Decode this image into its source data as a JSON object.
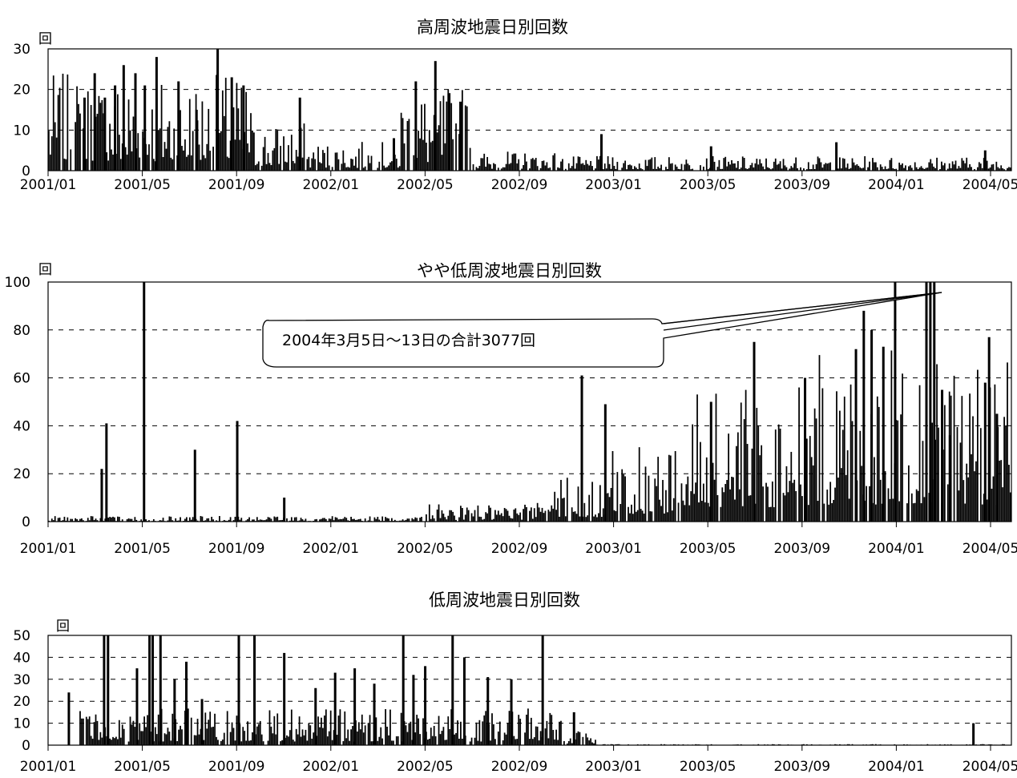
{
  "chart_data": [
    {
      "type": "bar",
      "title": "高周波地震日別回数",
      "ylabel": "回",
      "xlabel": "",
      "ylim": [
        0,
        30
      ],
      "yticks": [
        0,
        10,
        20,
        30
      ],
      "xticks": [
        "2001/01",
        "2001/05",
        "2001/09",
        "2002/01",
        "2002/05",
        "2002/09",
        "2003/01",
        "2003/05",
        "2003/09",
        "2004/01",
        "2004/05"
      ],
      "grid": "dashed horizontal",
      "color": "#000000",
      "x_units": "days since 2001/01/01",
      "x_range": [
        0,
        1230
      ],
      "events": [
        {
          "x": 45,
          "y": 18
        },
        {
          "x": 58,
          "y": 24
        },
        {
          "x": 71,
          "y": 18
        },
        {
          "x": 84,
          "y": 21
        },
        {
          "x": 95,
          "y": 26
        },
        {
          "x": 110,
          "y": 24
        },
        {
          "x": 122,
          "y": 21
        },
        {
          "x": 137,
          "y": 28
        },
        {
          "x": 165,
          "y": 22
        },
        {
          "x": 188,
          "y": 15
        },
        {
          "x": 215,
          "y": 31
        },
        {
          "x": 233,
          "y": 23
        },
        {
          "x": 248,
          "y": 21
        },
        {
          "x": 320,
          "y": 18
        },
        {
          "x": 440,
          "y": 8
        },
        {
          "x": 468,
          "y": 22
        },
        {
          "x": 493,
          "y": 27
        },
        {
          "x": 510,
          "y": 19
        },
        {
          "x": 525,
          "y": 17
        },
        {
          "x": 705,
          "y": 9
        },
        {
          "x": 845,
          "y": 6
        },
        {
          "x": 1005,
          "y": 7
        },
        {
          "x": 1195,
          "y": 5
        }
      ],
      "levels": [
        {
          "from": 0,
          "to": 260,
          "value": 10
        },
        {
          "from": 260,
          "to": 330,
          "value": 5
        },
        {
          "from": 330,
          "to": 450,
          "value": 3
        },
        {
          "from": 450,
          "to": 540,
          "value": 9
        },
        {
          "from": 540,
          "to": 650,
          "value": 2
        },
        {
          "from": 650,
          "to": 1230,
          "value": 1.5
        }
      ]
    },
    {
      "type": "bar",
      "title": "やや低周波地震日別回数",
      "ylabel": "回",
      "xlabel": "",
      "ylim": [
        0,
        100
      ],
      "yticks": [
        0,
        20,
        40,
        60,
        80,
        100
      ],
      "xticks": [
        "2001/01",
        "2001/05",
        "2001/09",
        "2002/01",
        "2002/05",
        "2002/09",
        "2003/01",
        "2003/05",
        "2003/09",
        "2004/01",
        "2004/05"
      ],
      "grid": "dashed horizontal",
      "color": "#000000",
      "x_units": "days since 2001/01/01",
      "x_range": [
        0,
        1230
      ],
      "annotation": "2004年3月5日～13日の合計3077回",
      "events": [
        {
          "x": 73,
          "y": 41
        },
        {
          "x": 67,
          "y": 22
        },
        {
          "x": 121,
          "y": 100
        },
        {
          "x": 186,
          "y": 30
        },
        {
          "x": 240,
          "y": 42
        },
        {
          "x": 300,
          "y": 10
        },
        {
          "x": 680,
          "y": 61
        },
        {
          "x": 710,
          "y": 49
        },
        {
          "x": 845,
          "y": 50
        },
        {
          "x": 900,
          "y": 75
        },
        {
          "x": 965,
          "y": 60
        },
        {
          "x": 1030,
          "y": 72
        },
        {
          "x": 1040,
          "y": 88
        },
        {
          "x": 1050,
          "y": 80
        },
        {
          "x": 1065,
          "y": 73
        },
        {
          "x": 1080,
          "y": 100
        },
        {
          "x": 1120,
          "y": 100
        },
        {
          "x": 1125,
          "y": 100
        },
        {
          "x": 1130,
          "y": 100
        },
        {
          "x": 1140,
          "y": 55
        },
        {
          "x": 1150,
          "y": 36
        },
        {
          "x": 1195,
          "y": 58
        },
        {
          "x": 1200,
          "y": 77
        },
        {
          "x": 1210,
          "y": 45
        }
      ],
      "levels": [
        {
          "from": 0,
          "to": 480,
          "value": 1
        },
        {
          "from": 480,
          "to": 620,
          "value": 3
        },
        {
          "from": 620,
          "to": 720,
          "value": 8
        },
        {
          "from": 720,
          "to": 820,
          "value": 14
        },
        {
          "from": 820,
          "to": 960,
          "value": 24
        },
        {
          "from": 960,
          "to": 1230,
          "value": 30
        }
      ]
    },
    {
      "type": "bar",
      "title": "低周波地震日別回数",
      "ylabel": "回",
      "xlabel": "",
      "ylim": [
        0,
        50
      ],
      "yticks": [
        0,
        10,
        20,
        30,
        40,
        50
      ],
      "xticks": [
        "2001/01",
        "2001/05",
        "2001/09",
        "2002/01",
        "2002/05",
        "2002/09",
        "2003/01",
        "2003/05",
        "2003/09",
        "2004/01",
        "2004/05"
      ],
      "grid": "dashed horizontal",
      "color": "#000000",
      "x_units": "days since 2001/01/01",
      "x_range": [
        0,
        1230
      ],
      "events": [
        {
          "x": 25,
          "y": 24
        },
        {
          "x": 70,
          "y": 50
        },
        {
          "x": 75,
          "y": 50
        },
        {
          "x": 112,
          "y": 35
        },
        {
          "x": 128,
          "y": 50
        },
        {
          "x": 132,
          "y": 50
        },
        {
          "x": 142,
          "y": 50
        },
        {
          "x": 160,
          "y": 30
        },
        {
          "x": 175,
          "y": 38
        },
        {
          "x": 195,
          "y": 21
        },
        {
          "x": 242,
          "y": 50
        },
        {
          "x": 262,
          "y": 50
        },
        {
          "x": 300,
          "y": 42
        },
        {
          "x": 340,
          "y": 26
        },
        {
          "x": 365,
          "y": 33
        },
        {
          "x": 390,
          "y": 35
        },
        {
          "x": 415,
          "y": 28
        },
        {
          "x": 452,
          "y": 50
        },
        {
          "x": 465,
          "y": 32
        },
        {
          "x": 480,
          "y": 36
        },
        {
          "x": 515,
          "y": 50
        },
        {
          "x": 530,
          "y": 40
        },
        {
          "x": 560,
          "y": 31
        },
        {
          "x": 590,
          "y": 30
        },
        {
          "x": 630,
          "y": 50
        },
        {
          "x": 670,
          "y": 15
        },
        {
          "x": 1180,
          "y": 10
        }
      ],
      "levels": [
        {
          "from": 40,
          "to": 660,
          "value": 7
        },
        {
          "from": 660,
          "to": 700,
          "value": 3
        },
        {
          "from": 700,
          "to": 1230,
          "value": 0.2
        }
      ]
    }
  ]
}
